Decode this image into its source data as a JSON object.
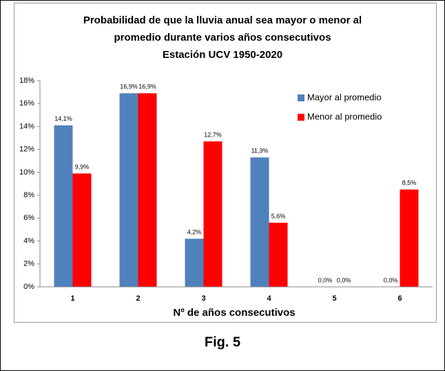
{
  "chart_data": {
    "type": "bar",
    "title": [
      "Probabilidad de que la lluvia anual sea mayor o menor al",
      "promedio durante varios años consecutivos",
      "Estación UCV 1950-2020"
    ],
    "x_label": "Nº de años consecutivos",
    "categories": [
      "1",
      "2",
      "3",
      "4",
      "5",
      "6"
    ],
    "series": [
      {
        "name": "Mayor al promedio",
        "color": "#4f81bd",
        "values": [
          14.1,
          16.9,
          4.2,
          11.3,
          0.0,
          0.0
        ],
        "value_labels": [
          "14,1%",
          "16,9%",
          "4,2%",
          "11,3%",
          "0,0%",
          "0,0%"
        ]
      },
      {
        "name": "Menor al promedio",
        "color": "#ff0000",
        "values": [
          9.9,
          16.9,
          12.7,
          5.6,
          0.0,
          8.5
        ],
        "value_labels": [
          "9,9%",
          "16,9%",
          "12,7%",
          "5,6%",
          "0,0%",
          "8,5%"
        ]
      }
    ],
    "ylim": [
      0,
      18
    ],
    "yticks": [
      {
        "value": 0,
        "label": "0%"
      },
      {
        "value": 2,
        "label": "2%"
      },
      {
        "value": 4,
        "label": "4%"
      },
      {
        "value": 6,
        "label": "6%"
      },
      {
        "value": 8,
        "label": "8%"
      },
      {
        "value": 10,
        "label": "10%"
      },
      {
        "value": 12,
        "label": "12%"
      },
      {
        "value": 14,
        "label": "14%"
      },
      {
        "value": 16,
        "label": "16%"
      },
      {
        "value": 18,
        "label": "18%"
      }
    ],
    "grid": false,
    "legend": "upper right"
  },
  "caption": "Fig. 5"
}
